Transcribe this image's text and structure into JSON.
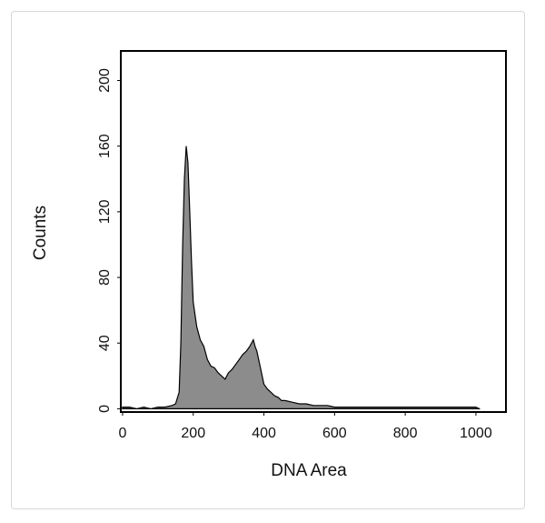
{
  "chart_data": {
    "type": "area",
    "x_label": "DNA Area",
    "y_label": "Counts",
    "x": [
      0,
      20,
      40,
      60,
      80,
      100,
      120,
      140,
      150,
      160,
      165,
      170,
      175,
      180,
      185,
      190,
      195,
      200,
      210,
      220,
      230,
      240,
      250,
      260,
      270,
      280,
      290,
      300,
      310,
      320,
      330,
      340,
      350,
      360,
      370,
      375,
      380,
      390,
      400,
      410,
      420,
      430,
      440,
      450,
      460,
      480,
      500,
      520,
      540,
      560,
      580,
      600,
      650,
      700,
      750,
      800,
      850,
      900,
      950,
      1000,
      1010
    ],
    "series": [
      {
        "color": "#8c8c8c",
        "values": [
          1,
          1,
          0,
          1,
          0,
          1,
          1,
          2,
          3,
          10,
          40,
          100,
          140,
          160,
          150,
          120,
          90,
          65,
          50,
          42,
          38,
          30,
          26,
          25,
          22,
          20,
          18,
          22,
          24,
          27,
          30,
          33,
          35,
          38,
          42,
          38,
          35,
          25,
          15,
          12,
          10,
          8,
          7,
          5,
          5,
          4,
          3,
          3,
          2,
          2,
          2,
          1,
          1,
          1,
          1,
          1,
          1,
          1,
          1,
          1,
          0
        ]
      }
    ],
    "xlim": [
      -5,
      1085
    ],
    "xticks": [
      0,
      200,
      400,
      600,
      800,
      1000
    ],
    "ylim": [
      -2,
      218
    ],
    "yticks": [
      0,
      40,
      80,
      120,
      160,
      200
    ]
  }
}
